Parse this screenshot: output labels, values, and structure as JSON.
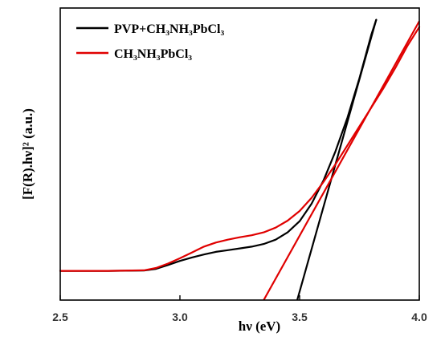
{
  "chart_data": {
    "type": "line",
    "xlabel": "hν (eV)",
    "ylabel": "[F(R).hν]² (a.u.)",
    "xlim": [
      2.5,
      4.0
    ],
    "ylim": [
      0,
      1.0
    ],
    "x_ticks": [
      "2.5",
      "3.0",
      "3.5",
      "4.0"
    ],
    "y_ticks_shown": false,
    "legend_position": "top-left",
    "series": [
      {
        "name": "PVP+CH₃NH₃PbCl₃",
        "color": "#000000",
        "points": [
          [
            2.5,
            0.1
          ],
          [
            2.7,
            0.1
          ],
          [
            2.85,
            0.101
          ],
          [
            2.9,
            0.107
          ],
          [
            2.95,
            0.12
          ],
          [
            3.0,
            0.134
          ],
          [
            3.05,
            0.146
          ],
          [
            3.1,
            0.156
          ],
          [
            3.15,
            0.165
          ],
          [
            3.2,
            0.171
          ],
          [
            3.25,
            0.177
          ],
          [
            3.3,
            0.183
          ],
          [
            3.35,
            0.192
          ],
          [
            3.4,
            0.207
          ],
          [
            3.45,
            0.232
          ],
          [
            3.5,
            0.27
          ],
          [
            3.55,
            0.33
          ],
          [
            3.6,
            0.41
          ],
          [
            3.65,
            0.51
          ],
          [
            3.7,
            0.625
          ],
          [
            3.75,
            0.76
          ],
          [
            3.8,
            0.91
          ],
          [
            3.82,
            0.96
          ]
        ]
      },
      {
        "name": "CH₃NH₃PbCl₃",
        "color": "#e00000",
        "points": [
          [
            2.5,
            0.1
          ],
          [
            2.7,
            0.1
          ],
          [
            2.85,
            0.102
          ],
          [
            2.9,
            0.11
          ],
          [
            2.95,
            0.125
          ],
          [
            3.0,
            0.143
          ],
          [
            3.05,
            0.163
          ],
          [
            3.1,
            0.183
          ],
          [
            3.15,
            0.197
          ],
          [
            3.2,
            0.207
          ],
          [
            3.25,
            0.215
          ],
          [
            3.3,
            0.222
          ],
          [
            3.35,
            0.232
          ],
          [
            3.4,
            0.248
          ],
          [
            3.45,
            0.272
          ],
          [
            3.5,
            0.305
          ],
          [
            3.55,
            0.35
          ],
          [
            3.6,
            0.405
          ],
          [
            3.65,
            0.465
          ],
          [
            3.7,
            0.53
          ],
          [
            3.75,
            0.595
          ],
          [
            3.8,
            0.66
          ],
          [
            3.85,
            0.725
          ],
          [
            3.9,
            0.795
          ],
          [
            3.95,
            0.87
          ],
          [
            4.0,
            0.935
          ]
        ]
      }
    ],
    "tangent_lines": [
      {
        "series": "PVP+CH₃NH₃PbCl₃",
        "color": "#000000",
        "from": [
          3.49,
          0.0
        ],
        "to": [
          3.82,
          0.96
        ]
      },
      {
        "series": "CH₃NH₃PbCl₃",
        "color": "#e00000",
        "from": [
          3.35,
          0.0
        ],
        "to": [
          4.0,
          0.955
        ]
      }
    ]
  }
}
